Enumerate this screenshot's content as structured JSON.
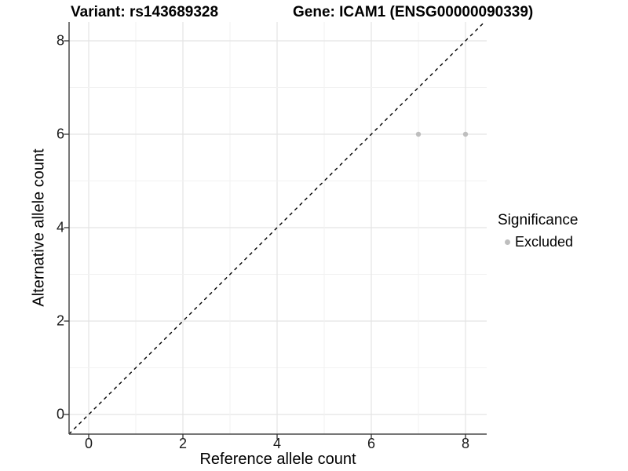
{
  "titles": {
    "left": "Variant: rs143689328",
    "right": "Gene: ICAM1 (ENSG00000090339)"
  },
  "axes": {
    "x": {
      "label": "Reference allele count"
    },
    "y": {
      "label": "Alternative allele count"
    }
  },
  "legend": {
    "title": "Significance",
    "items": [
      {
        "label": "Excluded",
        "color": "#bebebe"
      }
    ]
  },
  "colors": {
    "point": "#bebebe",
    "grid_major": "#e4e4e4",
    "grid_minor": "#f2f2f2",
    "axis_line": "#4a4a4a",
    "tick_mark": "#333333",
    "reference_line": "#000000",
    "background": "#ffffff"
  },
  "chart_data": {
    "type": "scatter",
    "title": "Variant: rs143689328  /  Gene: ICAM1 (ENSG00000090339)",
    "xlabel": "Reference allele count",
    "ylabel": "Alternative allele count",
    "xlim": [
      -0.42,
      8.4
    ],
    "ylim": [
      -0.42,
      8.4
    ],
    "x_ticks": [
      0,
      2,
      4,
      6,
      8
    ],
    "y_ticks": [
      0,
      2,
      4,
      6,
      8
    ],
    "grid": "major gridlines at even counts, minor gridlines at odd counts",
    "series": [
      {
        "name": "Excluded",
        "color": "#bebebe",
        "points": [
          {
            "x": 7,
            "y": 6
          },
          {
            "x": 8,
            "y": 6
          }
        ]
      }
    ],
    "reference_line": {
      "equation": "y = x",
      "style": "dashed",
      "color": "#000000",
      "from": {
        "x": -0.42,
        "y": -0.42
      },
      "to": {
        "x": 8.4,
        "y": 8.4
      }
    },
    "legend_position": "right"
  }
}
